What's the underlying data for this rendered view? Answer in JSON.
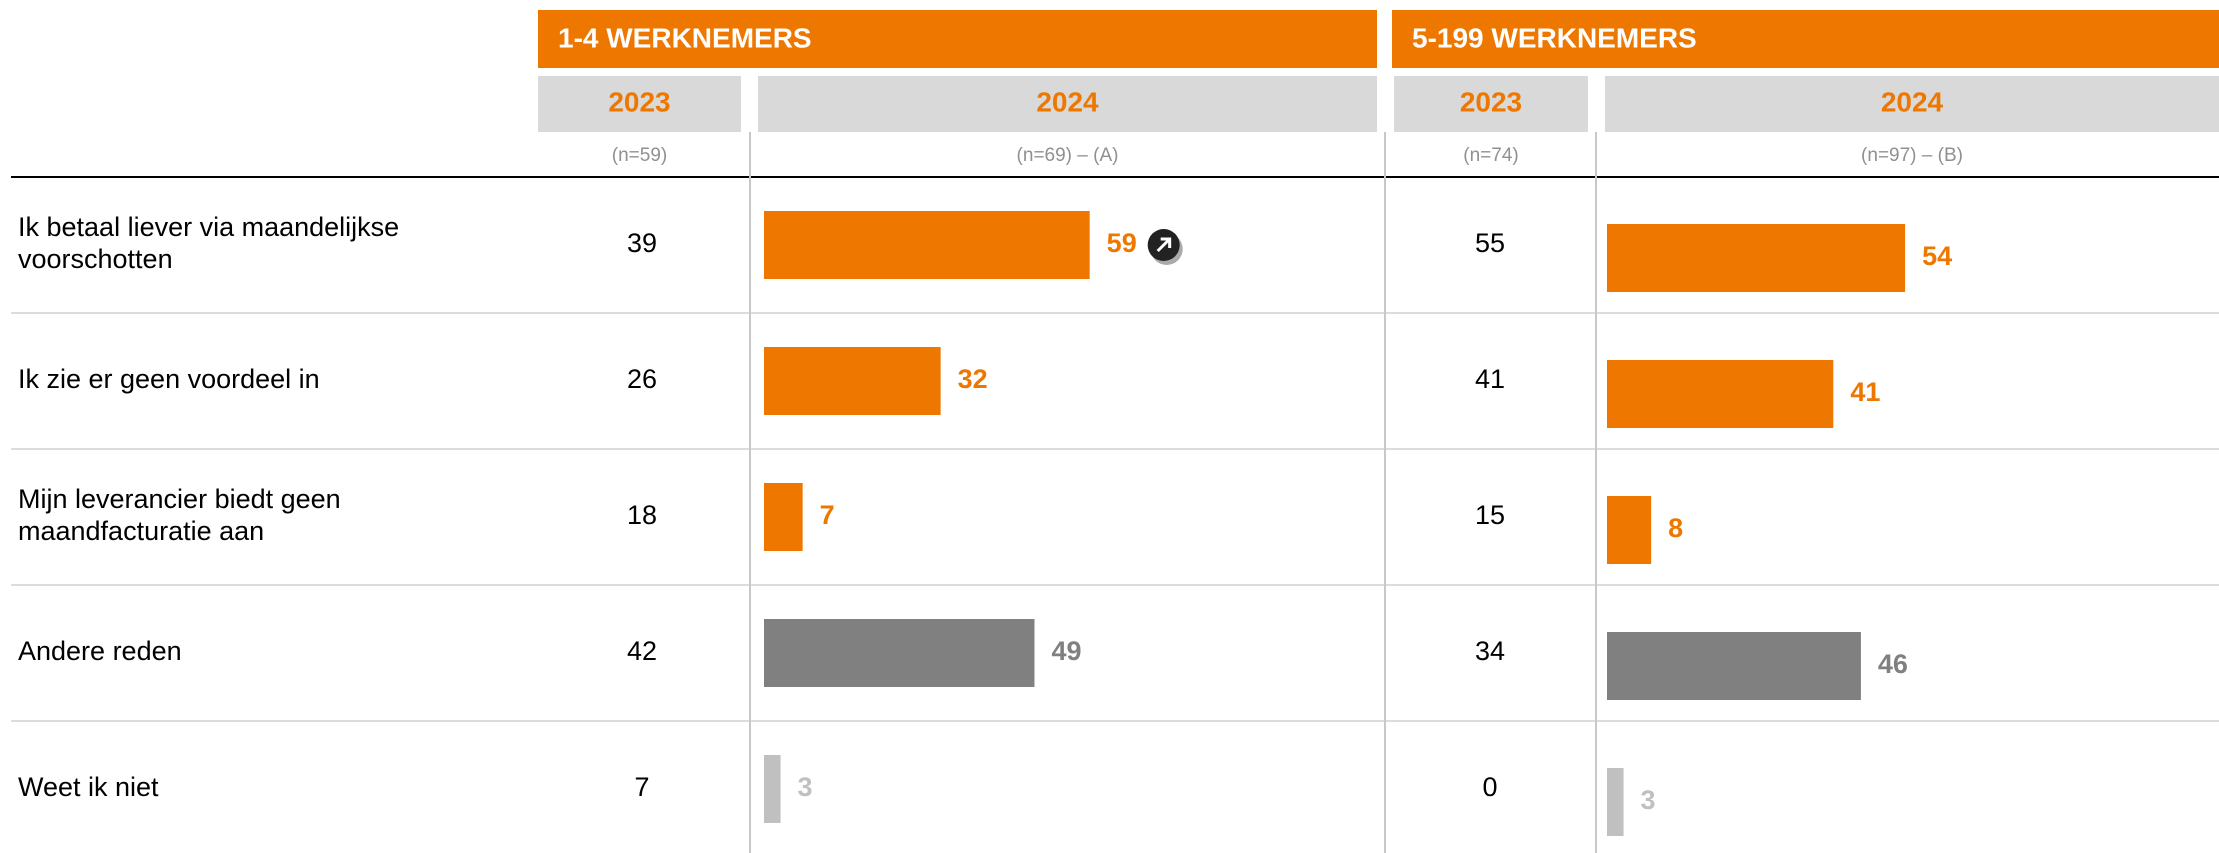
{
  "chart_data": {
    "type": "bar_table",
    "categories": [
      "Ik betaal liever via maandelijkse voorschotten",
      "Ik zie er geen voordeel in",
      "Mijn leverancier biedt geen maandfacturatie aan",
      "Andere reden",
      "Weet ik niet"
    ],
    "colors": [
      "#ee7700",
      "#ee7700",
      "#ee7700",
      "#808080",
      "#c0c0c0"
    ],
    "xlim": [
      0,
      100
    ],
    "groups": [
      {
        "title": "1-4 WERKNEMERS",
        "columns": [
          {
            "year": "2023",
            "n": "(n=59)",
            "values": [
              39,
              26,
              18,
              42,
              7
            ]
          },
          {
            "year": "2024",
            "n": "(n=69) – (A)",
            "values": [
              59,
              32,
              7,
              49,
              3
            ]
          }
        ]
      },
      {
        "title": "5-199 WERKNEMERS",
        "columns": [
          {
            "year": "2023",
            "n": "(n=74)",
            "values": [
              55,
              41,
              15,
              34,
              0
            ]
          },
          {
            "year": "2024",
            "n": "(n=97) – (B)",
            "values": [
              54,
              41,
              8,
              46,
              3
            ]
          }
        ]
      }
    ]
  }
}
